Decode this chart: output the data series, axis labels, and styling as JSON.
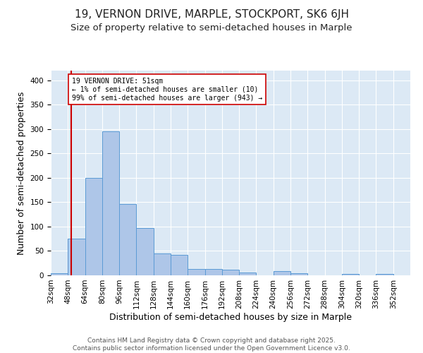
{
  "title": "19, VERNON DRIVE, MARPLE, STOCKPORT, SK6 6JH",
  "subtitle": "Size of property relative to semi-detached houses in Marple",
  "xlabel": "Distribution of semi-detached houses by size in Marple",
  "ylabel": "Number of semi-detached properties",
  "bin_labels": [
    "32sqm",
    "48sqm",
    "64sqm",
    "80sqm",
    "96sqm",
    "112sqm",
    "128sqm",
    "144sqm",
    "160sqm",
    "176sqm",
    "192sqm",
    "208sqm",
    "224sqm",
    "240sqm",
    "256sqm",
    "272sqm",
    "288sqm",
    "304sqm",
    "320sqm",
    "336sqm",
    "352sqm"
  ],
  "bin_edges": [
    32,
    48,
    64,
    80,
    96,
    112,
    128,
    144,
    160,
    176,
    192,
    208,
    224,
    240,
    256,
    272,
    288,
    304,
    320,
    336,
    352,
    368
  ],
  "bar_heights": [
    5,
    75,
    200,
    295,
    147,
    97,
    45,
    42,
    13,
    13,
    11,
    6,
    0,
    9,
    4,
    0,
    0,
    3,
    0,
    3,
    0
  ],
  "bar_color": "#aec6e8",
  "bar_edge_color": "#5b9bd5",
  "property_line_x": 51,
  "property_line_color": "#cc0000",
  "annotation_text": "19 VERNON DRIVE: 51sqm\n← 1% of semi-detached houses are smaller (10)\n99% of semi-detached houses are larger (943) →",
  "annotation_box_color": "#ffffff",
  "annotation_box_edge_color": "#cc0000",
  "ylim": [
    0,
    420
  ],
  "xlim": [
    32,
    368
  ],
  "background_color": "#dce9f5",
  "footer_text": "Contains HM Land Registry data © Crown copyright and database right 2025.\nContains public sector information licensed under the Open Government Licence v3.0.",
  "grid_color": "#ffffff",
  "title_fontsize": 11,
  "subtitle_fontsize": 9.5,
  "label_fontsize": 9,
  "tick_fontsize": 7.5,
  "footer_fontsize": 6.5
}
